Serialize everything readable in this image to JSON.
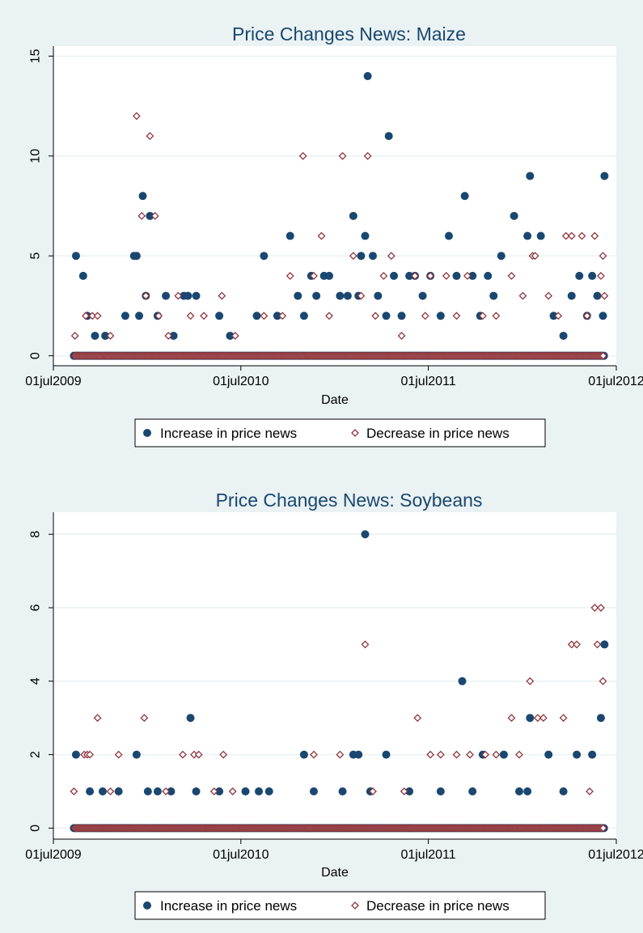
{
  "colors": {
    "background": "#eaf2f3",
    "plot_background": "#ffffff",
    "title": "#1a476f",
    "increase": "#1a476f",
    "decrease": "#90353b",
    "grid": "#eaf2f3",
    "axis": "#000000"
  },
  "chart_data": [
    {
      "type": "scatter",
      "title": "Price Changes News: Maize",
      "xlabel": "Date",
      "ylabel": "",
      "x_ticks": [
        "01jul2009",
        "01jul2010",
        "01jul2011",
        "01jul2012"
      ],
      "xlim": [
        "2009-07-01",
        "2012-07-01"
      ],
      "ylim": [
        -0.5,
        15.5
      ],
      "y_ticks": [
        0,
        5,
        10,
        15
      ],
      "grid": true,
      "legend": {
        "position": "bottom",
        "entries": [
          "Increase in price news",
          "Decrease in price news"
        ]
      },
      "baseline": {
        "y": 0,
        "start": "2009-08-10",
        "end": "2012-06-08"
      },
      "series": [
        {
          "name": "Increase in price news",
          "marker": "circle",
          "points": [
            [
              "2009-08-14",
              5
            ],
            [
              "2009-08-28",
              4
            ],
            [
              "2009-09-05",
              2
            ],
            [
              "2009-09-20",
              1
            ],
            [
              "2009-10-10",
              1
            ],
            [
              "2009-11-18",
              2
            ],
            [
              "2009-12-05",
              5
            ],
            [
              "2009-12-10",
              5
            ],
            [
              "2009-12-15",
              2
            ],
            [
              "2009-12-22",
              8
            ],
            [
              "2009-12-28",
              3
            ],
            [
              "2010-01-05",
              7
            ],
            [
              "2010-01-20",
              2
            ],
            [
              "2010-02-05",
              3
            ],
            [
              "2010-02-20",
              1
            ],
            [
              "2010-03-12",
              3
            ],
            [
              "2010-03-20",
              3
            ],
            [
              "2010-04-05",
              3
            ],
            [
              "2010-05-20",
              2
            ],
            [
              "2010-06-10",
              1
            ],
            [
              "2010-08-01",
              2
            ],
            [
              "2010-08-15",
              5
            ],
            [
              "2010-09-10",
              2
            ],
            [
              "2010-10-05",
              6
            ],
            [
              "2010-10-20",
              3
            ],
            [
              "2010-11-01",
              2
            ],
            [
              "2010-11-15",
              4
            ],
            [
              "2010-11-25",
              3
            ],
            [
              "2010-12-10",
              4
            ],
            [
              "2010-12-20",
              4
            ],
            [
              "2011-01-10",
              3
            ],
            [
              "2011-01-25",
              3
            ],
            [
              "2011-02-05",
              7
            ],
            [
              "2011-02-15",
              3
            ],
            [
              "2011-02-20",
              5
            ],
            [
              "2011-02-28",
              6
            ],
            [
              "2011-03-05",
              14
            ],
            [
              "2011-03-15",
              5
            ],
            [
              "2011-03-25",
              3
            ],
            [
              "2011-04-10",
              2
            ],
            [
              "2011-04-15",
              11
            ],
            [
              "2011-04-25",
              4
            ],
            [
              "2011-05-10",
              2
            ],
            [
              "2011-05-25",
              4
            ],
            [
              "2011-06-05",
              4
            ],
            [
              "2011-06-20",
              3
            ],
            [
              "2011-07-05",
              4
            ],
            [
              "2011-07-25",
              2
            ],
            [
              "2011-08-10",
              6
            ],
            [
              "2011-08-25",
              4
            ],
            [
              "2011-09-10",
              8
            ],
            [
              "2011-09-25",
              4
            ],
            [
              "2011-10-10",
              2
            ],
            [
              "2011-10-25",
              4
            ],
            [
              "2011-11-05",
              3
            ],
            [
              "2011-11-20",
              5
            ],
            [
              "2011-12-15",
              7
            ],
            [
              "2012-01-10",
              6
            ],
            [
              "2012-01-15",
              9
            ],
            [
              "2012-02-05",
              6
            ],
            [
              "2012-03-01",
              2
            ],
            [
              "2012-03-20",
              1
            ],
            [
              "2012-04-05",
              3
            ],
            [
              "2012-04-20",
              4
            ],
            [
              "2012-05-05",
              2
            ],
            [
              "2012-05-15",
              4
            ],
            [
              "2012-05-25",
              3
            ],
            [
              "2012-06-05",
              2
            ],
            [
              "2012-06-08",
              9
            ]
          ]
        },
        {
          "name": "Decrease in price news",
          "marker": "diamond",
          "points": [
            [
              "2009-08-12",
              1
            ],
            [
              "2009-09-02",
              2
            ],
            [
              "2009-09-15",
              2
            ],
            [
              "2009-09-25",
              2
            ],
            [
              "2009-10-20",
              1
            ],
            [
              "2009-12-10",
              12
            ],
            [
              "2009-12-20",
              7
            ],
            [
              "2009-12-28",
              3
            ],
            [
              "2010-01-05",
              11
            ],
            [
              "2010-01-15",
              7
            ],
            [
              "2010-01-22",
              2
            ],
            [
              "2010-02-10",
              1
            ],
            [
              "2010-03-01",
              3
            ],
            [
              "2010-03-25",
              2
            ],
            [
              "2010-04-20",
              2
            ],
            [
              "2010-05-25",
              3
            ],
            [
              "2010-06-20",
              1
            ],
            [
              "2010-08-15",
              2
            ],
            [
              "2010-09-20",
              2
            ],
            [
              "2010-10-05",
              4
            ],
            [
              "2010-10-30",
              10
            ],
            [
              "2010-11-20",
              4
            ],
            [
              "2010-12-05",
              6
            ],
            [
              "2010-12-20",
              2
            ],
            [
              "2011-01-15",
              10
            ],
            [
              "2011-02-05",
              5
            ],
            [
              "2011-02-20",
              3
            ],
            [
              "2011-03-05",
              10
            ],
            [
              "2011-03-20",
              2
            ],
            [
              "2011-04-05",
              4
            ],
            [
              "2011-04-20",
              5
            ],
            [
              "2011-05-10",
              1
            ],
            [
              "2011-06-05",
              4
            ],
            [
              "2011-06-25",
              2
            ],
            [
              "2011-07-05",
              4
            ],
            [
              "2011-08-05",
              4
            ],
            [
              "2011-08-25",
              2
            ],
            [
              "2011-09-15",
              4
            ],
            [
              "2011-10-15",
              2
            ],
            [
              "2011-11-10",
              2
            ],
            [
              "2011-12-10",
              4
            ],
            [
              "2012-01-01",
              3
            ],
            [
              "2012-01-20",
              5
            ],
            [
              "2012-01-25",
              5
            ],
            [
              "2012-02-20",
              3
            ],
            [
              "2012-03-10",
              2
            ],
            [
              "2012-03-25",
              6
            ],
            [
              "2012-04-05",
              6
            ],
            [
              "2012-04-25",
              6
            ],
            [
              "2012-05-05",
              2
            ],
            [
              "2012-05-20",
              6
            ],
            [
              "2012-06-01",
              4
            ],
            [
              "2012-06-05",
              5
            ],
            [
              "2012-06-08",
              3
            ]
          ]
        }
      ]
    },
    {
      "type": "scatter",
      "title": "Price Changes News: Soybeans",
      "xlabel": "Date",
      "ylabel": "",
      "x_ticks": [
        "01jul2009",
        "01jul2010",
        "01jul2011",
        "01jul2012"
      ],
      "xlim": [
        "2009-07-01",
        "2012-07-01"
      ],
      "ylim": [
        -0.3,
        8.6
      ],
      "y_ticks": [
        0,
        2,
        4,
        6,
        8
      ],
      "grid": true,
      "legend": {
        "position": "bottom",
        "entries": [
          "Increase in price news",
          "Decrease in price news"
        ]
      },
      "baseline": {
        "y": 0,
        "start": "2009-08-10",
        "end": "2012-06-08"
      },
      "series": [
        {
          "name": "Increase in price news",
          "marker": "circle",
          "points": [
            [
              "2009-08-14",
              2
            ],
            [
              "2009-09-10",
              1
            ],
            [
              "2009-10-05",
              1
            ],
            [
              "2009-11-05",
              1
            ],
            [
              "2009-12-10",
              2
            ],
            [
              "2010-01-01",
              1
            ],
            [
              "2010-01-20",
              1
            ],
            [
              "2010-02-15",
              1
            ],
            [
              "2010-03-25",
              3
            ],
            [
              "2010-04-05",
              1
            ],
            [
              "2010-05-20",
              1
            ],
            [
              "2010-07-10",
              1
            ],
            [
              "2010-08-05",
              1
            ],
            [
              "2010-08-25",
              1
            ],
            [
              "2010-11-01",
              2
            ],
            [
              "2010-11-20",
              1
            ],
            [
              "2011-01-15",
              1
            ],
            [
              "2011-02-05",
              2
            ],
            [
              "2011-02-15",
              2
            ],
            [
              "2011-02-28",
              8
            ],
            [
              "2011-03-10",
              1
            ],
            [
              "2011-04-10",
              2
            ],
            [
              "2011-05-25",
              1
            ],
            [
              "2011-07-25",
              1
            ],
            [
              "2011-09-05",
              4
            ],
            [
              "2011-09-25",
              1
            ],
            [
              "2011-10-15",
              2
            ],
            [
              "2011-11-25",
              2
            ],
            [
              "2011-12-25",
              1
            ],
            [
              "2012-01-10",
              1
            ],
            [
              "2012-01-15",
              3
            ],
            [
              "2012-02-20",
              2
            ],
            [
              "2012-03-20",
              1
            ],
            [
              "2012-04-15",
              2
            ],
            [
              "2012-05-15",
              2
            ],
            [
              "2012-06-01",
              3
            ],
            [
              "2012-06-08",
              5
            ]
          ]
        },
        {
          "name": "Decrease in price news",
          "marker": "diamond",
          "points": [
            [
              "2009-08-10",
              1
            ],
            [
              "2009-08-30",
              2
            ],
            [
              "2009-09-05",
              2
            ],
            [
              "2009-09-10",
              2
            ],
            [
              "2009-09-25",
              3
            ],
            [
              "2009-10-20",
              1
            ],
            [
              "2009-11-05",
              2
            ],
            [
              "2009-12-25",
              3
            ],
            [
              "2010-02-05",
              1
            ],
            [
              "2010-03-10",
              2
            ],
            [
              "2010-04-01",
              2
            ],
            [
              "2010-04-10",
              2
            ],
            [
              "2010-05-10",
              1
            ],
            [
              "2010-05-28",
              2
            ],
            [
              "2010-06-15",
              1
            ],
            [
              "2010-11-20",
              2
            ],
            [
              "2011-01-10",
              2
            ],
            [
              "2011-02-28",
              5
            ],
            [
              "2011-03-15",
              1
            ],
            [
              "2011-05-15",
              1
            ],
            [
              "2011-06-10",
              3
            ],
            [
              "2011-07-05",
              2
            ],
            [
              "2011-07-25",
              2
            ],
            [
              "2011-08-25",
              2
            ],
            [
              "2011-09-20",
              2
            ],
            [
              "2011-10-20",
              2
            ],
            [
              "2011-11-10",
              2
            ],
            [
              "2011-12-10",
              3
            ],
            [
              "2011-12-25",
              2
            ],
            [
              "2012-01-15",
              4
            ],
            [
              "2012-01-30",
              3
            ],
            [
              "2012-02-10",
              3
            ],
            [
              "2012-03-20",
              3
            ],
            [
              "2012-04-05",
              5
            ],
            [
              "2012-04-15",
              5
            ],
            [
              "2012-05-10",
              1
            ],
            [
              "2012-05-20",
              6
            ],
            [
              "2012-05-25",
              5
            ],
            [
              "2012-06-01",
              6
            ],
            [
              "2012-06-05",
              4
            ]
          ]
        }
      ]
    }
  ]
}
